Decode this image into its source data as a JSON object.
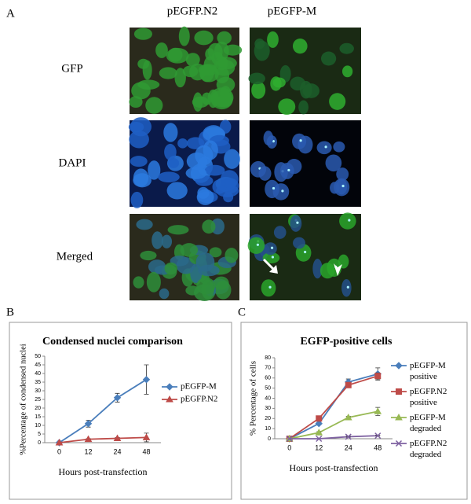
{
  "panels": {
    "a": "A",
    "b": "B",
    "c": "C"
  },
  "columns": [
    "pEGFP.N2",
    "pEGFP-M"
  ],
  "rows": [
    "GFP",
    "DAPI",
    "Merged"
  ],
  "chart_data": [
    {
      "type": "line",
      "title": "Condensed nuclei comparison",
      "xlabel": "Hours post-transfection",
      "ylabel": "%Percentage of condensed nuclei",
      "categories": [
        "0",
        "12",
        "24",
        "48"
      ],
      "ylim": [
        0,
        50
      ],
      "yticks": [
        0,
        5,
        10,
        15,
        20,
        25,
        30,
        35,
        40,
        45,
        50
      ],
      "series": [
        {
          "name": "pEGFP-M",
          "color": "#4a7ebb",
          "marker": "diamond",
          "values": [
            0,
            11,
            26,
            36.5
          ],
          "errors": [
            0,
            2,
            2.5,
            8.5
          ]
        },
        {
          "name": "pEGFP.N2",
          "color": "#be4b48",
          "marker": "triangle",
          "values": [
            0,
            2,
            2.5,
            3
          ],
          "errors": [
            0,
            0.3,
            0.5,
            2.5
          ]
        }
      ]
    },
    {
      "type": "line",
      "title": "EGFP-positive cells",
      "xlabel": "Hours post-transfection",
      "ylabel": "% Percentage of cells",
      "categories": [
        "0",
        "12",
        "24",
        "48"
      ],
      "ylim": [
        0,
        80
      ],
      "yticks": [
        0,
        10,
        20,
        30,
        40,
        50,
        60,
        70,
        80
      ],
      "series": [
        {
          "name": "pEGFP-M positive",
          "color": "#4a7ebb",
          "marker": "diamond",
          "values": [
            0,
            15,
            56,
            64
          ],
          "errors": [
            0,
            1,
            3,
            6
          ]
        },
        {
          "name": "pEGFP.N2 positive",
          "color": "#be4b48",
          "marker": "square",
          "values": [
            0,
            20,
            53,
            62
          ],
          "errors": [
            0,
            1,
            2,
            3
          ]
        },
        {
          "name": "pEGFP-M degraded",
          "color": "#98b954",
          "marker": "triangle",
          "values": [
            0,
            6,
            21,
            27
          ],
          "errors": [
            0,
            1,
            1,
            4
          ]
        },
        {
          "name": "pEGFP.N2 degraded",
          "color": "#7d60a0",
          "marker": "x",
          "values": [
            0,
            0,
            2,
            3
          ],
          "errors": [
            0,
            0,
            0.5,
            0.5
          ]
        }
      ]
    }
  ]
}
